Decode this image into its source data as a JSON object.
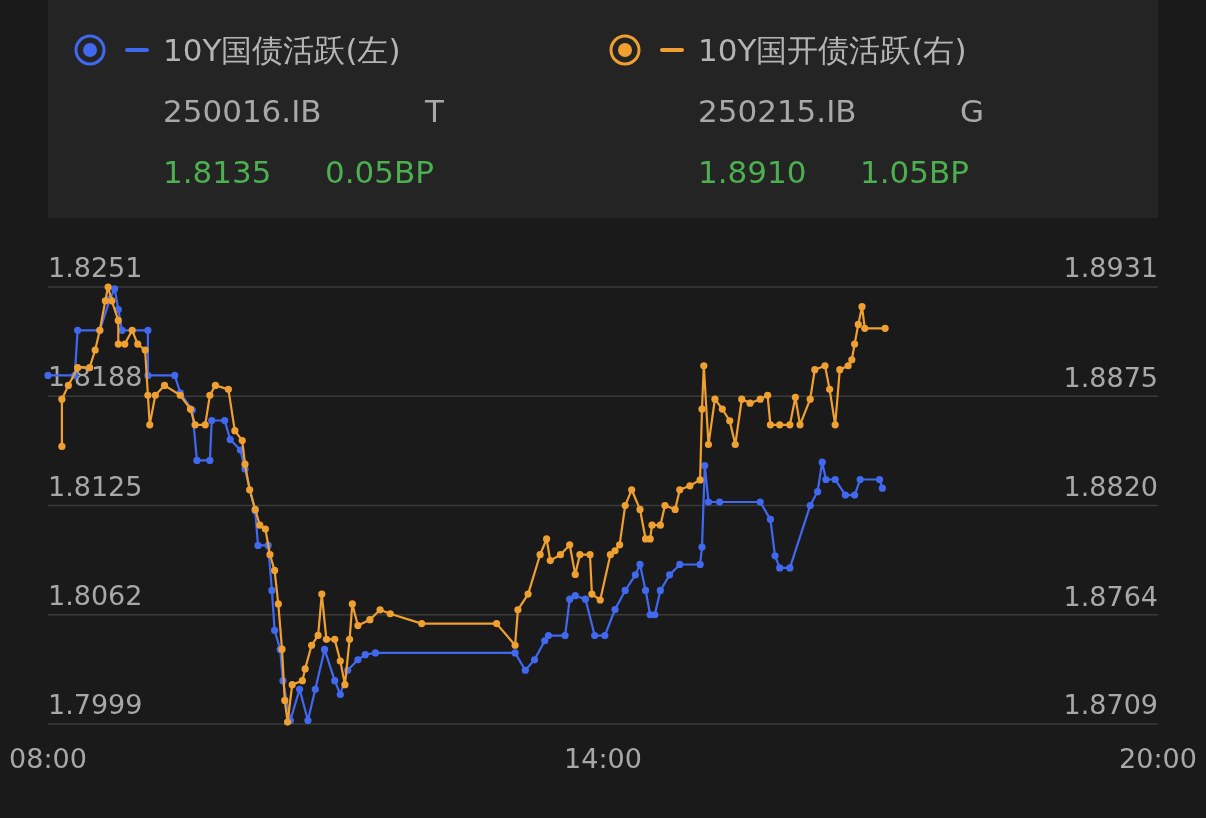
{
  "chart_data": {
    "type": "line",
    "marker": "circle",
    "line_style": "solid",
    "grid": "y",
    "legend": "top",
    "xlim": [
      8,
      20
    ],
    "xticks": [
      {
        "value": 8,
        "label": "08:00"
      },
      {
        "value": 14,
        "label": "14:00"
      },
      {
        "value": 20,
        "label": "20:00"
      }
    ],
    "ylim": [
      1.7999,
      1.8251
    ],
    "yticks": [
      1.7999,
      1.8062,
      1.8125,
      1.8188,
      1.8251
    ],
    "y2lim": [
      1.8709,
      1.8931
    ],
    "y2ticks": [
      1.8709,
      1.8764,
      {
        "value": 1.882,
        "label": "1.8820"
      },
      1.8875,
      1.8931
    ],
    "annotations": [
      "250016.IB",
      "T",
      "1.8135",
      "0.05BP",
      "250215.IB",
      "G",
      "1.8910",
      "1.05BP"
    ],
    "series": [
      {
        "name": "10Y国债活跃(左)",
        "color": "#4169f0",
        "axis": "y",
        "x": [
          8.0,
          8.29,
          8.32,
          8.56,
          8.67,
          8.72,
          8.76,
          8.8,
          9.08,
          9.08,
          9.37,
          9.43,
          9.56,
          9.61,
          9.75,
          9.77,
          9.91,
          9.97,
          10.08,
          10.13,
          10.24,
          10.27,
          10.38,
          10.42,
          10.45,
          10.51,
          10.54,
          10.62,
          10.72,
          10.81,
          10.89,
          10.99,
          11.1,
          11.16,
          11.24,
          11.35,
          11.43,
          11.54,
          13.05,
          13.16,
          13.26,
          13.37,
          13.41,
          13.59,
          13.64,
          13.7,
          13.81,
          13.91,
          14.02,
          14.13,
          14.24,
          14.35,
          14.4,
          14.46,
          14.51,
          14.56,
          14.62,
          14.72,
          14.83,
          15.05,
          15.07,
          15.1,
          15.14,
          15.26,
          15.7,
          15.81,
          15.86,
          15.91,
          16.02,
          16.24,
          16.32,
          16.37,
          16.41,
          16.51,
          16.62,
          16.72,
          16.78,
          16.99,
          17.02
        ],
        "values": [
          1.82,
          1.82,
          1.8226,
          1.8226,
          1.8244,
          1.825,
          1.8238,
          1.8226,
          1.8226,
          1.82,
          1.82,
          1.819,
          1.818,
          1.8151,
          1.8151,
          1.8174,
          1.8174,
          1.8163,
          1.8157,
          1.8146,
          1.8122,
          1.8102,
          1.8102,
          1.8076,
          1.8053,
          1.8042,
          1.8024,
          1.8001,
          1.8019,
          1.8001,
          1.8019,
          1.8042,
          1.8024,
          1.8016,
          1.803,
          1.8036,
          1.8039,
          1.804,
          1.804,
          1.803,
          1.8036,
          1.8047,
          1.805,
          1.805,
          1.8071,
          1.8073,
          1.8071,
          1.805,
          1.805,
          1.8065,
          1.8076,
          1.8085,
          1.8091,
          1.8076,
          1.8062,
          1.8062,
          1.8076,
          1.8085,
          1.8091,
          1.8091,
          1.8101,
          1.8148,
          1.8127,
          1.8127,
          1.8127,
          1.8117,
          1.8096,
          1.8089,
          1.8089,
          1.8125,
          1.8133,
          1.815,
          1.814,
          1.814,
          1.8131,
          1.8131,
          1.814,
          1.814,
          1.8135
        ]
      },
      {
        "name": "10Y国开债活跃(右)",
        "color": "#f0a030",
        "axis": "y2",
        "x": [
          8.15,
          8.15,
          8.22,
          8.32,
          8.45,
          8.51,
          8.56,
          8.62,
          8.65,
          8.69,
          8.76,
          8.76,
          8.83,
          8.91,
          8.97,
          9.05,
          9.08,
          9.1,
          9.16,
          9.26,
          9.43,
          9.54,
          9.59,
          9.7,
          9.75,
          9.81,
          9.95,
          10.02,
          10.1,
          10.13,
          10.18,
          10.24,
          10.29,
          10.35,
          10.4,
          10.45,
          10.49,
          10.53,
          10.56,
          10.59,
          10.64,
          10.75,
          10.78,
          10.85,
          10.92,
          10.96,
          11.01,
          11.1,
          11.16,
          11.21,
          11.26,
          11.29,
          11.35,
          11.48,
          11.59,
          11.7,
          12.04,
          12.85,
          13.05,
          13.08,
          13.19,
          13.32,
          13.39,
          13.43,
          13.54,
          13.64,
          13.7,
          13.75,
          13.86,
          13.88,
          13.97,
          14.08,
          14.13,
          14.18,
          14.24,
          14.31,
          14.4,
          14.46,
          14.51,
          14.53,
          14.62,
          14.67,
          14.78,
          14.83,
          14.94,
          15.05,
          15.07,
          15.09,
          15.14,
          15.21,
          15.29,
          15.37,
          15.43,
          15.5,
          15.59,
          15.7,
          15.78,
          15.81,
          15.91,
          16.02,
          16.08,
          16.13,
          16.24,
          16.29,
          16.4,
          16.45,
          16.51,
          16.56,
          16.65,
          16.69,
          16.72,
          16.76,
          16.8,
          16.83,
          17.05
        ],
        "values": [
          1.885,
          1.8874,
          1.8881,
          1.889,
          1.889,
          1.8899,
          1.8909,
          1.8924,
          1.8931,
          1.8924,
          1.8914,
          1.8902,
          1.8902,
          1.8909,
          1.8902,
          1.8899,
          1.8876,
          1.8861,
          1.8876,
          1.8881,
          1.8876,
          1.8869,
          1.8861,
          1.8861,
          1.8876,
          1.8881,
          1.8879,
          1.8858,
          1.8853,
          1.8841,
          1.8828,
          1.8818,
          1.881,
          1.8808,
          1.8795,
          1.8787,
          1.877,
          1.8747,
          1.8721,
          1.871,
          1.8729,
          1.8731,
          1.8737,
          1.8749,
          1.8754,
          1.8775,
          1.8752,
          1.8752,
          1.8741,
          1.8729,
          1.8752,
          1.877,
          1.8759,
          1.8762,
          1.8767,
          1.8765,
          1.876,
          1.876,
          1.8749,
          1.8767,
          1.8775,
          1.8795,
          1.8803,
          1.8792,
          1.8795,
          1.88,
          1.8785,
          1.8795,
          1.8795,
          1.8775,
          1.8772,
          1.8795,
          1.8797,
          1.88,
          1.882,
          1.8828,
          1.8818,
          1.8803,
          1.8803,
          1.881,
          1.881,
          1.882,
          1.8818,
          1.8828,
          1.883,
          1.8833,
          1.8869,
          1.8891,
          1.8851,
          1.8874,
          1.8869,
          1.8863,
          1.8851,
          1.8874,
          1.8872,
          1.8874,
          1.8876,
          1.8861,
          1.8861,
          1.8861,
          1.8875,
          1.8861,
          1.8874,
          1.8889,
          1.8891,
          1.8879,
          1.8861,
          1.8889,
          1.8891,
          1.8894,
          1.8902,
          1.8912,
          1.8921,
          1.891,
          1.891
        ]
      }
    ]
  }
}
